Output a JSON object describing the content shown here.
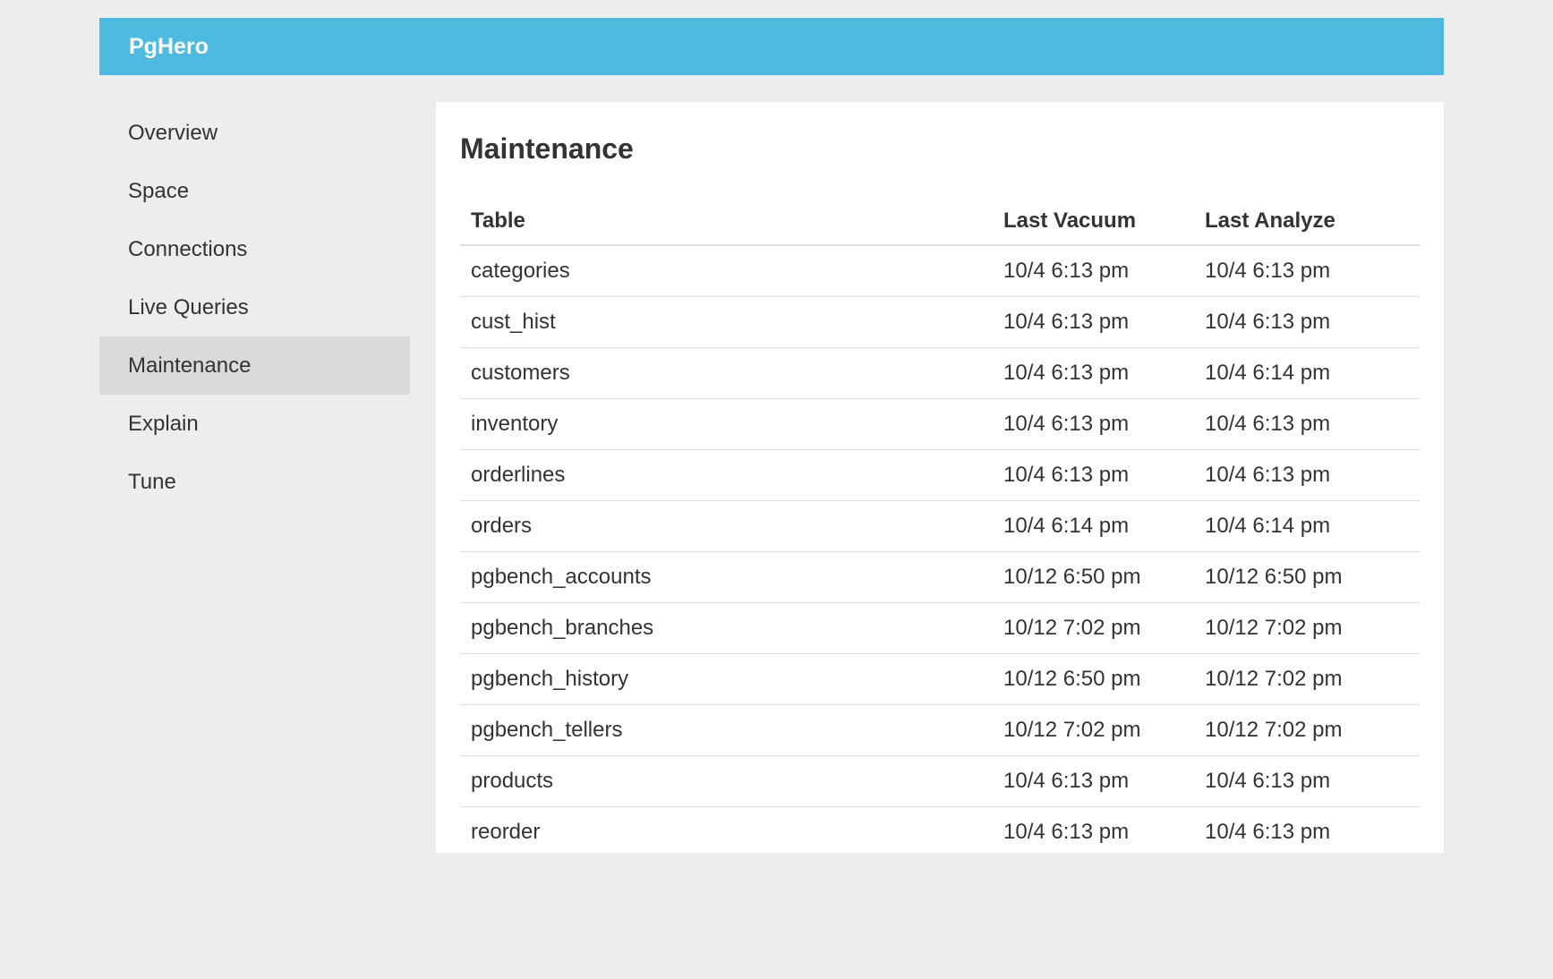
{
  "brand": "PgHero",
  "colors": {
    "navbar_bg": "#4dbbe0",
    "page_bg": "#ededed",
    "active_item_bg": "#d9d9d9",
    "panel_bg": "#ffffff",
    "text": "#333333",
    "border": "#dddddd"
  },
  "sidebar": {
    "items": [
      {
        "label": "Overview",
        "active": false
      },
      {
        "label": "Space",
        "active": false
      },
      {
        "label": "Connections",
        "active": false
      },
      {
        "label": "Live Queries",
        "active": false
      },
      {
        "label": "Maintenance",
        "active": true
      },
      {
        "label": "Explain",
        "active": false
      },
      {
        "label": "Tune",
        "active": false
      }
    ]
  },
  "main": {
    "title": "Maintenance",
    "table": {
      "columns": [
        "Table",
        "Last Vacuum",
        "Last Analyze"
      ],
      "rows": [
        [
          "categories",
          "10/4 6:13 pm",
          "10/4 6:13 pm"
        ],
        [
          "cust_hist",
          "10/4 6:13 pm",
          "10/4 6:13 pm"
        ],
        [
          "customers",
          "10/4 6:13 pm",
          "10/4 6:14 pm"
        ],
        [
          "inventory",
          "10/4 6:13 pm",
          "10/4 6:13 pm"
        ],
        [
          "orderlines",
          "10/4 6:13 pm",
          "10/4 6:13 pm"
        ],
        [
          "orders",
          "10/4 6:14 pm",
          "10/4 6:14 pm"
        ],
        [
          "pgbench_accounts",
          "10/12 6:50 pm",
          "10/12 6:50 pm"
        ],
        [
          "pgbench_branches",
          "10/12 7:02 pm",
          "10/12 7:02 pm"
        ],
        [
          "pgbench_history",
          "10/12 6:50 pm",
          "10/12 7:02 pm"
        ],
        [
          "pgbench_tellers",
          "10/12 7:02 pm",
          "10/12 7:02 pm"
        ],
        [
          "products",
          "10/4 6:13 pm",
          "10/4 6:13 pm"
        ],
        [
          "reorder",
          "10/4 6:13 pm",
          "10/4 6:13 pm"
        ]
      ]
    }
  }
}
